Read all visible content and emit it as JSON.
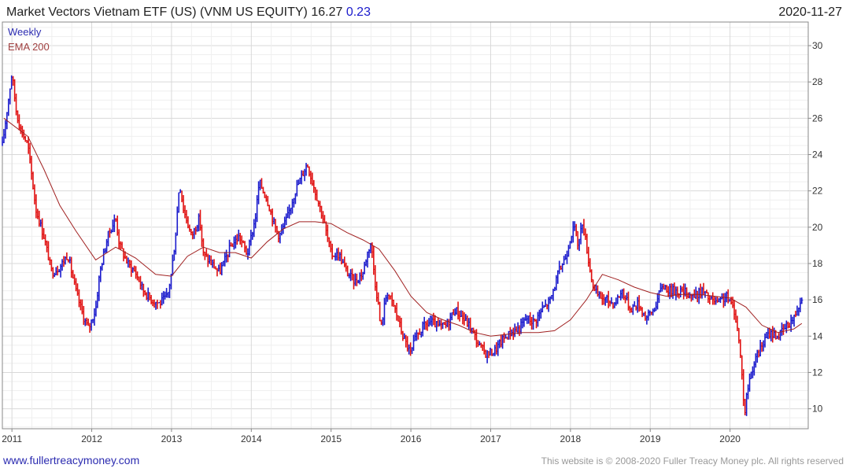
{
  "header": {
    "title": "Market Vectors Vietnam ETF (US)  (VNM US EQUITY) 16.27",
    "change": "0.23",
    "date": "2020-11-27"
  },
  "footer": {
    "left": "www.fullertreacymoney.com",
    "right": "This website is © 2008-2020 Fuller Treacy Money plc. All rights reserved"
  },
  "colors": {
    "up": "#1a1acc",
    "down": "#e01010",
    "ema": "#a02020",
    "change": "#1a1acc",
    "weekly_label": "#2b2bb0",
    "ema_label": "#a04040",
    "footer_left": "#2b2bb0"
  },
  "chart_data": {
    "type": "line",
    "subtype": "weekly-hlc-bars-with-ema",
    "legend": [
      "Weekly",
      "EMA 200"
    ],
    "legend_position": "top-left",
    "y_axis_position": "right",
    "grid": true,
    "xlim": [
      2010.88,
      2020.98
    ],
    "ylim": [
      8.9,
      31.3
    ],
    "x_ticks": [
      {
        "value": 2011,
        "label": "2011"
      },
      {
        "value": 2012,
        "label": "2012"
      },
      {
        "value": 2013,
        "label": "2013"
      },
      {
        "value": 2014,
        "label": "2014"
      },
      {
        "value": 2015,
        "label": "2015"
      },
      {
        "value": 2016,
        "label": "2016"
      },
      {
        "value": 2017,
        "label": "2017"
      },
      {
        "value": 2018,
        "label": "2018"
      },
      {
        "value": 2019,
        "label": "2019"
      },
      {
        "value": 2020,
        "label": "2020"
      }
    ],
    "y_ticks": [
      {
        "value": 10,
        "label": "10"
      },
      {
        "value": 12,
        "label": "12"
      },
      {
        "value": 14,
        "label": "14"
      },
      {
        "value": 16,
        "label": "16"
      },
      {
        "value": 18,
        "label": "18"
      },
      {
        "value": 20,
        "label": "20"
      },
      {
        "value": 22,
        "label": "22"
      },
      {
        "value": 24,
        "label": "24"
      },
      {
        "value": 26,
        "label": "26"
      },
      {
        "value": 28,
        "label": "28"
      },
      {
        "value": 30,
        "label": "30"
      }
    ],
    "series": [
      {
        "name": "Weekly",
        "x": [
          2010.88,
          2011.0,
          2011.05,
          2011.1,
          2011.2,
          2011.3,
          2011.4,
          2011.5,
          2011.6,
          2011.7,
          2011.8,
          2011.9,
          2011.96,
          2012.05,
          2012.1,
          2012.2,
          2012.3,
          2012.35,
          2012.45,
          2012.55,
          2012.65,
          2012.75,
          2012.85,
          2012.95,
          2013.0,
          2013.05,
          2013.1,
          2013.15,
          2013.25,
          2013.35,
          2013.4,
          2013.5,
          2013.6,
          2013.65,
          2013.75,
          2013.85,
          2013.95,
          2014.05,
          2014.1,
          2014.2,
          2014.3,
          2014.35,
          2014.45,
          2014.55,
          2014.65,
          2014.7,
          2014.8,
          2014.9,
          2015.0,
          2015.1,
          2015.2,
          2015.3,
          2015.4,
          2015.45,
          2015.5,
          2015.55,
          2015.6,
          2015.62,
          2015.7,
          2015.8,
          2015.9,
          2016.0,
          2016.05,
          2016.15,
          2016.25,
          2016.35,
          2016.45,
          2016.55,
          2016.65,
          2016.75,
          2016.85,
          2016.95,
          2017.05,
          2017.15,
          2017.25,
          2017.35,
          2017.45,
          2017.55,
          2017.65,
          2017.75,
          2017.85,
          2017.95,
          2018.0,
          2018.05,
          2018.1,
          2018.15,
          2018.2,
          2018.25,
          2018.3,
          2018.35,
          2018.45,
          2018.55,
          2018.65,
          2018.75,
          2018.85,
          2018.95,
          2019.05,
          2019.15,
          2019.25,
          2019.35,
          2019.45,
          2019.55,
          2019.65,
          2019.75,
          2019.85,
          2019.95,
          2020.05,
          2020.1,
          2020.15,
          2020.18,
          2020.2,
          2020.25,
          2020.3,
          2020.4,
          2020.5,
          2020.6,
          2020.7,
          2020.8,
          2020.9
        ],
        "values": [
          24.5,
          28.5,
          26.5,
          25.5,
          24.5,
          21.0,
          19.5,
          17.5,
          17.8,
          18.5,
          16.5,
          15.0,
          14.4,
          15.5,
          17.5,
          19.5,
          20.5,
          19.0,
          18.0,
          17.5,
          16.5,
          16.0,
          15.8,
          16.2,
          17.5,
          19.5,
          22.5,
          21.0,
          19.5,
          20.5,
          18.5,
          18.0,
          17.5,
          18.0,
          19.0,
          19.5,
          18.5,
          20.5,
          22.5,
          21.5,
          20.0,
          19.5,
          20.5,
          22.0,
          23.0,
          23.5,
          22.0,
          20.5,
          18.5,
          18.5,
          17.5,
          17.0,
          17.5,
          18.5,
          19.2,
          17.0,
          15.5,
          14.3,
          16.5,
          15.5,
          14.0,
          13.0,
          13.8,
          14.5,
          14.8,
          14.5,
          14.6,
          15.5,
          15.0,
          14.5,
          13.5,
          13.0,
          13.2,
          13.8,
          14.2,
          14.4,
          15.0,
          14.8,
          15.5,
          16.0,
          17.5,
          18.5,
          19.5,
          20.0,
          19.0,
          20.3,
          19.0,
          17.5,
          16.5,
          16.2,
          16.0,
          15.8,
          16.5,
          15.5,
          15.8,
          15.0,
          15.5,
          16.8,
          16.5,
          16.5,
          16.4,
          16.2,
          16.5,
          16.0,
          15.8,
          16.2,
          15.5,
          14.2,
          12.0,
          9.5,
          10.5,
          11.8,
          12.5,
          13.5,
          14.2,
          14.0,
          14.5,
          15.0,
          16.2
        ]
      },
      {
        "name": "EMA 200",
        "x": [
          2010.9,
          2011.2,
          2011.4,
          2011.6,
          2011.8,
          2012.05,
          2012.3,
          2012.55,
          2012.8,
          2013.0,
          2013.2,
          2013.4,
          2013.6,
          2013.8,
          2014.0,
          2014.2,
          2014.4,
          2014.6,
          2014.8,
          2015.0,
          2015.2,
          2015.4,
          2015.6,
          2015.8,
          2016.0,
          2016.2,
          2016.4,
          2016.6,
          2016.8,
          2017.0,
          2017.2,
          2017.4,
          2017.6,
          2017.8,
          2018.0,
          2018.2,
          2018.4,
          2018.6,
          2018.8,
          2019.0,
          2019.2,
          2019.4,
          2019.6,
          2019.8,
          2020.0,
          2020.2,
          2020.4,
          2020.6,
          2020.8,
          2020.9
        ],
        "values": [
          26.0,
          25.0,
          23.2,
          21.2,
          19.8,
          18.2,
          18.9,
          18.3,
          17.4,
          17.3,
          18.4,
          18.9,
          18.6,
          18.6,
          18.3,
          19.2,
          19.9,
          20.3,
          20.3,
          20.2,
          19.7,
          19.3,
          18.8,
          17.6,
          16.2,
          15.3,
          14.9,
          14.6,
          14.2,
          14.0,
          14.1,
          14.2,
          14.2,
          14.3,
          14.9,
          16.0,
          17.4,
          17.1,
          16.7,
          16.4,
          16.2,
          16.3,
          16.3,
          16.2,
          16.1,
          15.6,
          14.6,
          14.2,
          14.4,
          14.7
        ]
      }
    ]
  }
}
